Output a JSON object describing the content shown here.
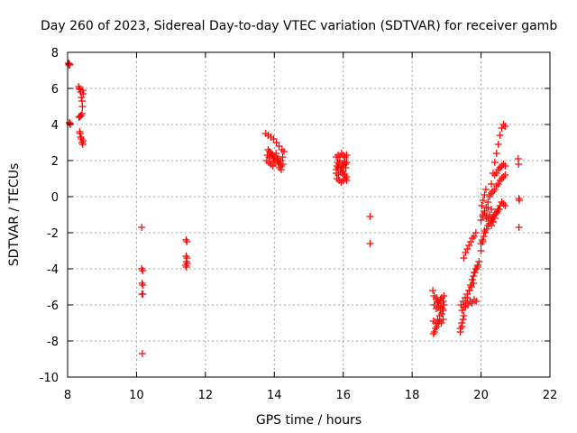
{
  "chart_data": {
    "type": "scatter",
    "title": "Day 260 of 2023, Sidereal Day-to-day VTEC variation (SDTVAR) for receiver gamb",
    "xlabel": "GPS time / hours",
    "ylabel": "SDTVAR / TECUs",
    "xlim": [
      8,
      22
    ],
    "ylim": [
      -10,
      8
    ],
    "xticks": [
      8,
      10,
      12,
      14,
      16,
      18,
      20,
      22
    ],
    "yticks": [
      -10,
      -8,
      -6,
      -4,
      -2,
      0,
      2,
      4,
      6,
      8
    ],
    "grid": true,
    "marker": "+",
    "colors": {
      "series": "#ff0000",
      "grid": "#a0a0a0",
      "frame": "#000000"
    },
    "series": [
      {
        "name": "SDTVAR",
        "x": [
          8.02,
          8.04,
          8.05,
          8.06,
          8.05,
          8.08,
          8.07,
          8.32,
          8.34,
          8.36,
          8.38,
          8.4,
          8.42,
          8.43,
          8.44,
          8.45,
          8.33,
          8.36,
          8.39,
          8.42,
          8.35,
          8.36,
          8.38,
          8.4,
          8.42,
          8.44,
          8.45,
          10.15,
          10.15,
          10.18,
          10.16,
          10.18,
          10.16,
          10.18,
          10.17,
          11.44,
          11.46,
          11.44,
          11.46,
          11.45,
          11.47,
          11.43,
          11.45,
          13.75,
          13.82,
          13.9,
          13.98,
          14.06,
          14.14,
          14.22,
          14.28,
          13.8,
          13.85,
          13.92,
          13.97,
          14.02,
          14.08,
          14.12,
          14.15,
          14.2,
          13.78,
          13.84,
          13.9,
          13.96,
          14.02,
          14.08,
          14.15,
          14.2,
          14.25,
          13.82,
          13.86,
          13.9,
          13.95,
          14.0,
          14.05,
          14.12,
          14.18,
          14.24,
          15.8,
          15.85,
          15.9,
          15.95,
          16.0,
          16.05,
          16.1,
          15.82,
          15.88,
          15.94,
          16.0,
          16.06,
          16.1,
          15.8,
          15.86,
          15.92,
          15.98,
          16.04,
          16.1,
          15.82,
          15.88,
          15.94,
          16.0,
          16.06,
          16.1,
          15.8,
          15.85,
          15.92,
          16.0,
          16.07,
          15.84,
          15.9,
          15.97,
          16.03,
          16.78,
          16.78,
          18.62,
          18.65,
          18.68,
          18.72,
          18.76,
          18.8,
          18.85,
          18.9,
          18.62,
          18.68,
          18.74,
          18.8,
          18.86,
          18.9,
          18.64,
          18.7,
          18.76,
          18.82,
          18.88,
          18.92,
          18.7,
          18.74,
          18.78,
          18.82,
          18.86,
          18.9,
          18.92,
          18.6,
          18.64,
          18.7,
          18.76,
          18.82,
          19.4,
          19.45,
          19.5,
          19.55,
          19.6,
          19.65,
          19.7,
          19.75,
          19.8,
          19.85,
          19.9,
          19.42,
          19.48,
          19.54,
          19.6,
          19.66,
          19.72,
          19.78,
          19.45,
          19.5,
          19.56,
          19.62,
          19.68,
          19.74,
          19.8,
          19.86,
          19.5,
          19.55,
          19.6,
          19.65,
          19.7,
          19.75,
          19.8,
          19.85,
          19.74,
          19.78,
          19.82,
          19.86,
          19.9,
          19.94,
          19.4,
          19.44,
          19.48,
          20.0,
          20.05,
          20.1,
          20.15,
          20.2,
          20.25,
          20.3,
          20.35,
          20.4,
          20.45,
          20.5,
          20.55,
          20.6,
          20.65,
          20.7,
          20.0,
          20.04,
          20.08,
          20.12,
          20.16,
          20.2,
          20.24,
          20.28,
          20.32,
          20.36,
          20.4,
          20.44,
          20.48,
          20.52,
          20.05,
          20.1,
          20.15,
          20.2,
          20.25,
          20.3,
          20.35,
          20.4,
          20.45,
          20.5,
          20.55,
          20.6,
          20.65,
          20.7,
          20.0,
          20.05,
          20.1,
          20.15,
          20.2,
          20.25,
          20.3,
          20.4,
          20.45,
          20.5,
          20.55,
          20.6,
          20.65,
          20.7,
          20.3,
          20.35,
          20.4,
          20.45,
          20.5,
          20.55,
          20.6,
          20.65,
          20.7,
          20.02,
          20.06,
          20.1,
          20.14,
          21.08,
          21.09,
          21.1,
          21.11,
          21.1
        ],
        "y": [
          7.4,
          7.3,
          7.35,
          7.3,
          4.1,
          4.0,
          4.05,
          6.1,
          6.0,
          5.95,
          5.8,
          5.5,
          5.3,
          5.0,
          5.9,
          5.7,
          4.4,
          4.45,
          4.5,
          4.6,
          3.6,
          3.5,
          3.3,
          3.2,
          3.0,
          2.9,
          3.1,
          -1.7,
          -4.0,
          -4.1,
          -4.8,
          -4.9,
          -5.4,
          -5.4,
          -8.7,
          -2.4,
          -2.5,
          -3.3,
          -3.4,
          -3.6,
          -3.7,
          -3.8,
          -3.9,
          3.5,
          3.4,
          3.3,
          3.2,
          3.0,
          2.8,
          2.6,
          2.5,
          2.3,
          2.2,
          2.3,
          2.1,
          2.0,
          2.1,
          1.9,
          1.8,
          1.7,
          2.0,
          1.9,
          1.8,
          1.7,
          1.9,
          2.0,
          1.6,
          1.5,
          1.8,
          2.6,
          2.5,
          2.4,
          2.3,
          2.2,
          2.4,
          2.1,
          2.0,
          2.2,
          2.2,
          2.3,
          2.2,
          2.4,
          2.3,
          2.2,
          2.3,
          1.7,
          1.8,
          1.6,
          1.7,
          1.8,
          1.9,
          1.3,
          1.2,
          1.4,
          1.3,
          1.2,
          1.1,
          1.0,
          0.9,
          0.8,
          0.9,
          1.0,
          0.9,
          1.5,
          1.6,
          1.5,
          1.4,
          1.6,
          1.9,
          2.0,
          1.8,
          1.9,
          -1.1,
          -2.6,
          -7.6,
          -7.5,
          -7.3,
          -7.2,
          -7.0,
          -6.9,
          -7.0,
          -6.8,
          -6.9,
          -7.0,
          -6.8,
          -6.6,
          -6.5,
          -6.3,
          -6.0,
          -6.2,
          -6.1,
          -6.3,
          -6.2,
          -6.0,
          -5.6,
          -5.8,
          -5.9,
          -5.7,
          -5.6,
          -5.8,
          -5.5,
          -5.2,
          -5.5,
          -5.7,
          -5.9,
          -6.1,
          -7.5,
          -7.2,
          -6.6,
          -6.1,
          -5.6,
          -5.2,
          -4.9,
          -4.6,
          -4.2,
          -4.0,
          -3.8,
          -6.0,
          -5.8,
          -5.6,
          -5.4,
          -5.2,
          -5.0,
          -4.8,
          -6.3,
          -6.1,
          -5.9,
          -6.0,
          -5.8,
          -5.9,
          -5.7,
          -5.8,
          -3.4,
          -3.1,
          -2.9,
          -2.7,
          -2.5,
          -2.3,
          -2.2,
          -2.0,
          -4.6,
          -4.4,
          -4.2,
          -4.0,
          -3.9,
          -3.6,
          -7.3,
          -7.0,
          -6.8,
          -3.0,
          -2.5,
          -1.9,
          -1.2,
          -0.6,
          0.1,
          0.7,
          1.3,
          1.9,
          2.4,
          2.9,
          3.4,
          3.8,
          4.0,
          3.9,
          -2.6,
          -2.4,
          -2.2,
          -2.0,
          -1.8,
          -1.6,
          -1.5,
          -1.3,
          -1.2,
          -1.1,
          -1.0,
          -0.9,
          -0.8,
          -0.7,
          -1.1,
          -0.9,
          -0.6,
          -0.3,
          0.0,
          0.2,
          0.3,
          0.4,
          0.6,
          0.7,
          0.9,
          1.0,
          1.1,
          1.2,
          -1.3,
          -1.0,
          -0.8,
          -1.1,
          -1.2,
          -1.0,
          -0.7,
          1.2,
          1.3,
          1.5,
          1.6,
          1.7,
          1.8,
          1.7,
          -1.6,
          -1.4,
          -1.2,
          -0.9,
          -0.7,
          -0.5,
          -0.3,
          -0.4,
          -0.5,
          -0.5,
          -0.2,
          0.1,
          0.4,
          2.1,
          1.8,
          -0.1,
          -0.2,
          -1.7
        ]
      }
    ]
  }
}
